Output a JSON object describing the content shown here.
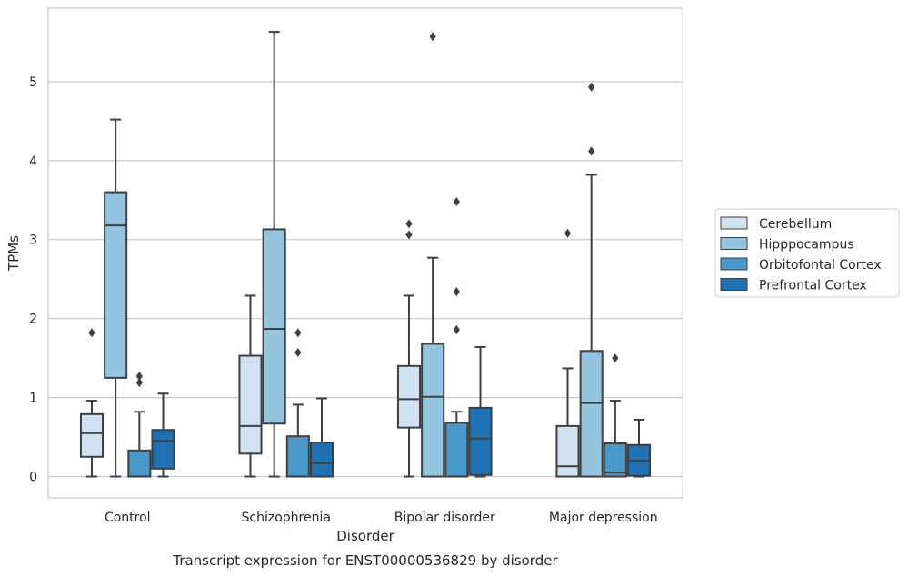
{
  "caption": "Transcript expression for ENST00000536829 by disorder",
  "chart_data": {
    "type": "box",
    "title": "",
    "xlabel": "Disorder",
    "ylabel": "TPMs",
    "ylim": [
      -0.27,
      5.93
    ],
    "yticks": [
      0,
      1,
      2,
      3,
      4,
      5
    ],
    "grid": true,
    "legend_position": "right",
    "categories": [
      "Control",
      "Schizophrenia",
      "Bipolar disorder",
      "Major depression"
    ],
    "series": [
      {
        "name": "Cerebellum",
        "color": "#d0e1f2",
        "boxes": [
          {
            "q1": 0.25,
            "median": 0.55,
            "q3": 0.79,
            "whislo": 0.0,
            "whishi": 0.96,
            "fliers": [
              1.82
            ]
          },
          {
            "q1": 0.29,
            "median": 0.64,
            "q3": 1.53,
            "whislo": 0.0,
            "whishi": 2.29,
            "fliers": []
          },
          {
            "q1": 0.62,
            "median": 0.98,
            "q3": 1.4,
            "whislo": 0.0,
            "whishi": 2.29,
            "fliers": [
              3.06,
              3.2
            ]
          },
          {
            "q1": 0.0,
            "median": 0.13,
            "q3": 0.64,
            "whislo": 0.0,
            "whishi": 1.37,
            "fliers": [
              3.08
            ]
          }
        ]
      },
      {
        "name": "Hipppocampus",
        "color": "#94c4df",
        "boxes": [
          {
            "q1": 1.25,
            "median": 3.18,
            "q3": 3.6,
            "whislo": 0.0,
            "whishi": 4.52,
            "fliers": []
          },
          {
            "q1": 0.67,
            "median": 1.87,
            "q3": 3.13,
            "whislo": 0.0,
            "whishi": 5.63,
            "fliers": []
          },
          {
            "q1": 0.0,
            "median": 1.01,
            "q3": 1.68,
            "whislo": 0.0,
            "whishi": 2.77,
            "fliers": [
              5.57
            ]
          },
          {
            "q1": 0.0,
            "median": 0.93,
            "q3": 1.59,
            "whislo": 0.0,
            "whishi": 3.82,
            "fliers": [
              4.12,
              4.93
            ]
          }
        ]
      },
      {
        "name": "Orbitofontal Cortex",
        "color": "#4a98c9",
        "boxes": [
          {
            "q1": 0.0,
            "median": 0.0,
            "q3": 0.33,
            "whislo": 0.0,
            "whishi": 0.82,
            "fliers": [
              1.19,
              1.27
            ]
          },
          {
            "q1": 0.0,
            "median": 0.0,
            "q3": 0.51,
            "whislo": 0.0,
            "whishi": 0.91,
            "fliers": [
              1.57,
              1.82
            ]
          },
          {
            "q1": 0.0,
            "median": 0.0,
            "q3": 0.68,
            "whislo": 0.0,
            "whishi": 0.82,
            "fliers": [
              1.86,
              2.34,
              3.48
            ]
          },
          {
            "q1": 0.0,
            "median": 0.05,
            "q3": 0.42,
            "whislo": 0.0,
            "whishi": 0.96,
            "fliers": [
              1.5
            ]
          }
        ]
      },
      {
        "name": "Prefrontal Cortex",
        "color": "#2070b4",
        "boxes": [
          {
            "q1": 0.1,
            "median": 0.45,
            "q3": 0.59,
            "whislo": 0.0,
            "whishi": 1.05,
            "fliers": []
          },
          {
            "q1": 0.0,
            "median": 0.17,
            "q3": 0.43,
            "whislo": 0.0,
            "whishi": 0.99,
            "fliers": []
          },
          {
            "q1": 0.02,
            "median": 0.48,
            "q3": 0.87,
            "whislo": 0.0,
            "whishi": 1.64,
            "fliers": []
          },
          {
            "q1": 0.01,
            "median": 0.2,
            "q3": 0.4,
            "whislo": 0.0,
            "whishi": 0.72,
            "fliers": []
          }
        ]
      }
    ]
  }
}
